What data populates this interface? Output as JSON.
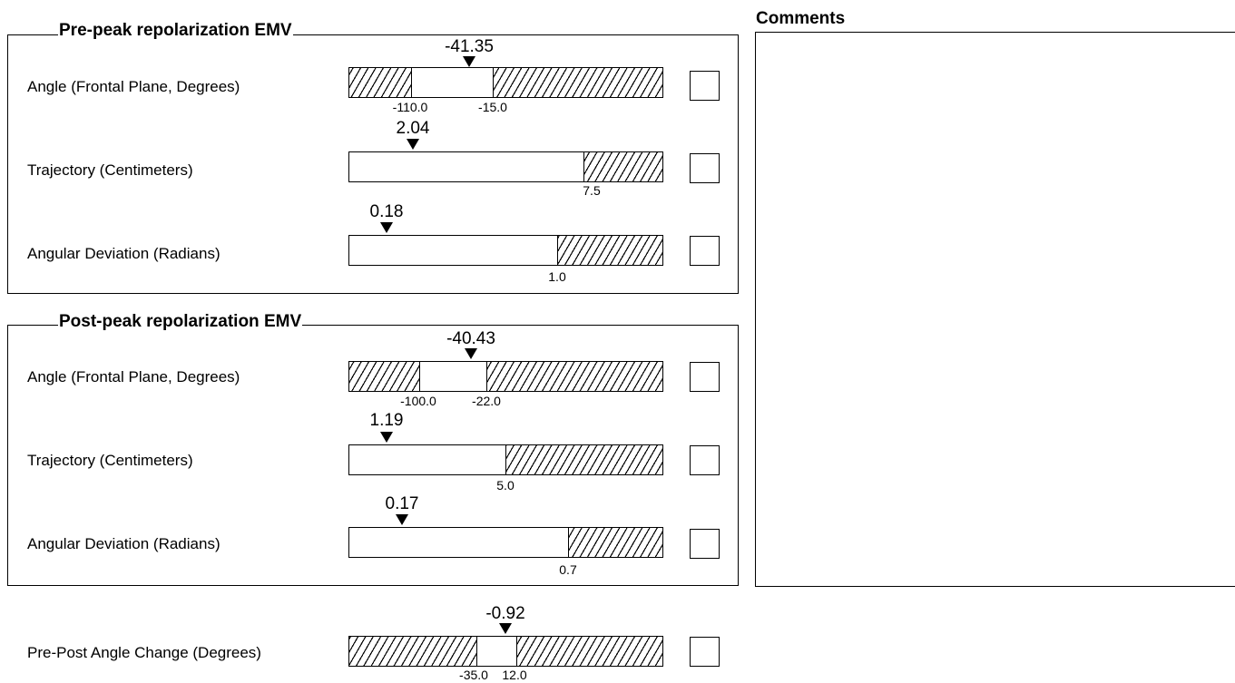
{
  "groups": [
    {
      "title": "Pre-peak repolarization EMV",
      "rows": [
        {
          "label": "Angle (Frontal Plane, Degrees)",
          "value": "-41.35",
          "ticks": [
            "-110.0",
            "-15.0"
          ]
        },
        {
          "label": "Trajectory (Centimeters)",
          "value": "2.04",
          "ticks": [
            "7.5"
          ]
        },
        {
          "label": "Angular Deviation (Radians)",
          "value": "0.18",
          "ticks": [
            "1.0"
          ]
        }
      ]
    },
    {
      "title": "Post-peak repolarization EMV",
      "rows": [
        {
          "label": "Angle (Frontal Plane, Degrees)",
          "value": "-40.43",
          "ticks": [
            "-100.0",
            "-22.0"
          ]
        },
        {
          "label": "Trajectory (Centimeters)",
          "value": "1.19",
          "ticks": [
            "5.0"
          ]
        },
        {
          "label": "Angular Deviation (Radians)",
          "value": "0.17",
          "ticks": [
            "0.7"
          ]
        }
      ]
    }
  ],
  "standalone": {
    "label": "Pre-Post Angle Change (Degrees)",
    "value": "-0.92",
    "ticks": [
      "-35.0",
      "12.0"
    ]
  },
  "comments": {
    "title": "Comments"
  }
}
